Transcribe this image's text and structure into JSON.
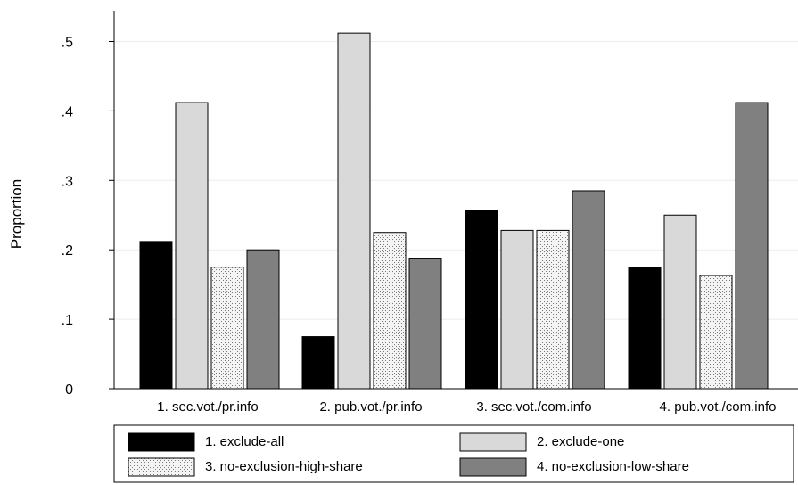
{
  "chart_data": {
    "type": "bar",
    "title": "",
    "xlabel": "",
    "ylabel": "Proportion",
    "ylim": [
      0,
      0.55
    ],
    "yticks": [
      {
        "value": 0,
        "label": "0"
      },
      {
        "value": 0.1,
        "label": ".1"
      },
      {
        "value": 0.2,
        "label": ".2"
      },
      {
        "value": 0.3,
        "label": ".3"
      },
      {
        "value": 0.4,
        "label": ".4"
      },
      {
        "value": 0.5,
        "label": ".5"
      }
    ],
    "grid": true,
    "legend_position": "bottom",
    "categories": [
      "1. sec.vot./pr.info",
      "2. pub.vot./pr.info",
      "3. sec.vot./com.info",
      "4. pub.vot./com.info"
    ],
    "series": [
      {
        "name": "1. exclude-all",
        "color": "#000000",
        "pattern": "solid",
        "values": [
          0.212,
          0.075,
          0.257,
          0.175
        ]
      },
      {
        "name": "2. exclude-one",
        "color": "#d9d9d9",
        "pattern": "solid",
        "values": [
          0.412,
          0.512,
          0.228,
          0.25
        ]
      },
      {
        "name": "3. no-exclusion-high-share",
        "color": "#f2f2f2",
        "pattern": "dots",
        "values": [
          0.175,
          0.225,
          0.228,
          0.163
        ]
      },
      {
        "name": "4. no-exclusion-low-share",
        "color": "#808080",
        "pattern": "solid",
        "values": [
          0.2,
          0.188,
          0.285,
          0.412
        ]
      }
    ]
  }
}
